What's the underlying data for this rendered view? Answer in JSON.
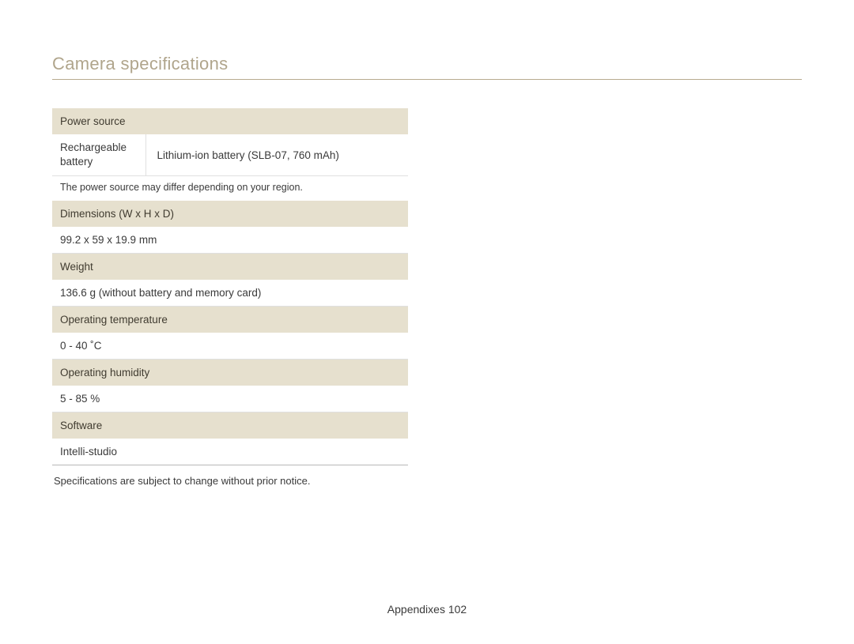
{
  "title": "Camera speciﬁcations",
  "sections": {
    "power_source": {
      "header": "Power source",
      "row_label": "Rechargeable battery",
      "row_value": "Lithium-ion battery (SLB-07, 760 mAh)",
      "note": "The power source may differ depending on your region."
    },
    "dimensions": {
      "header": "Dimensions (W x H x D)",
      "value": "99.2 x 59 x 19.9 mm"
    },
    "weight": {
      "header": "Weight",
      "value": "136.6 g (without battery and memory card)"
    },
    "op_temp": {
      "header": "Operating temperature",
      "value": "0 - 40 ˚C"
    },
    "op_humidity": {
      "header": "Operating humidity",
      "value": "5 - 85 %"
    },
    "software": {
      "header": "Software",
      "value": "Intelli-studio"
    }
  },
  "footer_note": "Speciﬁcations are subject to change without prior notice.",
  "page_footer": {
    "section": "Appendixes",
    "page": "102"
  },
  "colors": {
    "title_color": "#b0a58c",
    "header_bg": "#e6e0ce",
    "text": "#3a3a3a",
    "rule": "#b8aa8e",
    "cell_border": "#e0e0e0"
  }
}
